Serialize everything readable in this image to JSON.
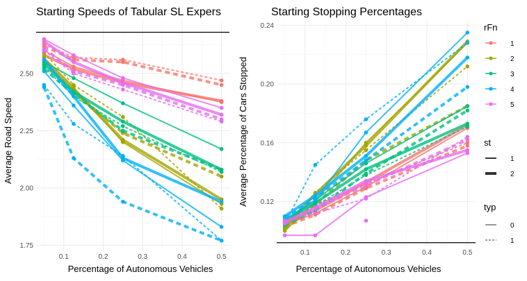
{
  "chart_data": [
    {
      "type": "line",
      "title": "Starting Speeds of Tabular SL Expers",
      "xlabel": "Percentage of Autonomous Vehicles",
      "ylabel": "Average Road Speed",
      "xlim": [
        0.03,
        0.52
      ],
      "ylim": [
        1.73,
        2.73
      ],
      "xticks": [
        0.1,
        0.2,
        0.3,
        0.4,
        0.5
      ],
      "xtick_labels": [
        "0.1",
        "0.2",
        "0.3",
        "0.4",
        "0.5"
      ],
      "yticks": [
        1.75,
        2.0,
        2.25,
        2.5
      ],
      "ytick_labels": [
        "1.75",
        "2.00",
        "2.25",
        "2.50"
      ],
      "hline": 2.68,
      "grid": true,
      "series": [
        {
          "rfn": "1",
          "st": "1",
          "typ": "0",
          "x": [
            0.05,
            0.125,
            0.25,
            0.5
          ],
          "y": [
            2.6,
            2.53,
            2.47,
            2.375
          ]
        },
        {
          "rfn": "1",
          "st": "2",
          "typ": "0",
          "x": [
            0.05,
            0.125,
            0.25,
            0.5
          ],
          "y": [
            2.58,
            2.52,
            2.46,
            2.38
          ]
        },
        {
          "rfn": "1",
          "st": "1",
          "typ": "1",
          "x": [
            0.05,
            0.125,
            0.25,
            0.5
          ],
          "y": [
            2.63,
            2.57,
            2.56,
            2.47
          ]
        },
        {
          "rfn": "1",
          "st": "2",
          "typ": "1",
          "x": [
            0.05,
            0.125,
            0.25,
            0.5
          ],
          "y": [
            2.62,
            2.56,
            2.55,
            2.45
          ]
        },
        {
          "rfn": "2",
          "st": "1",
          "typ": "0",
          "x": [
            0.05,
            0.125,
            0.25,
            0.5
          ],
          "y": [
            2.57,
            2.44,
            2.2,
            1.93
          ]
        },
        {
          "rfn": "2",
          "st": "2",
          "typ": "0",
          "x": [
            0.05,
            0.125,
            0.25,
            0.5
          ],
          "y": [
            2.56,
            2.43,
            2.21,
            1.95
          ]
        },
        {
          "rfn": "2",
          "st": "1",
          "typ": "1",
          "x": [
            0.05,
            0.125,
            0.25,
            0.5
          ],
          "y": [
            2.59,
            2.45,
            2.31,
            1.91
          ]
        },
        {
          "rfn": "2",
          "st": "2",
          "typ": "1",
          "x": [
            0.05,
            0.125,
            0.25,
            0.5
          ],
          "y": [
            2.55,
            2.42,
            2.24,
            2.05
          ]
        },
        {
          "rfn": "3",
          "st": "1",
          "typ": "0",
          "x": [
            0.05,
            0.125,
            0.25,
            0.5
          ],
          "y": [
            2.55,
            2.48,
            2.37,
            2.17
          ]
        },
        {
          "rfn": "3",
          "st": "2",
          "typ": "0",
          "x": [
            0.05,
            0.125,
            0.25,
            0.5
          ],
          "y": [
            2.54,
            2.42,
            2.29,
            2.08
          ]
        },
        {
          "rfn": "3",
          "st": "1",
          "typ": "1",
          "x": [
            0.05,
            0.125,
            0.25,
            0.5
          ],
          "y": [
            2.53,
            2.4,
            2.27,
            2.07
          ]
        },
        {
          "rfn": "3",
          "st": "2",
          "typ": "1",
          "x": [
            0.05,
            0.125,
            0.25,
            0.5
          ],
          "y": [
            2.52,
            2.41,
            2.25,
            2.08
          ]
        },
        {
          "rfn": "4",
          "st": "1",
          "typ": "0",
          "x": [
            0.05,
            0.125,
            0.25,
            0.5
          ],
          "y": [
            2.51,
            2.36,
            2.12,
            1.83
          ]
        },
        {
          "rfn": "4",
          "st": "2",
          "typ": "0",
          "x": [
            0.05,
            0.125,
            0.25,
            0.5
          ],
          "y": [
            2.56,
            2.4,
            2.13,
            1.94
          ]
        },
        {
          "rfn": "4",
          "st": "1",
          "typ": "1",
          "x": [
            0.05,
            0.125,
            0.25,
            0.5
          ],
          "y": [
            2.45,
            2.28,
            2.14,
            1.77
          ]
        },
        {
          "rfn": "4",
          "st": "2",
          "typ": "1",
          "x": [
            0.05,
            0.125,
            0.25,
            0.5
          ],
          "y": [
            2.44,
            2.13,
            1.94,
            1.77
          ]
        },
        {
          "rfn": "5",
          "st": "1",
          "typ": "0",
          "x": [
            0.05,
            0.125,
            0.25,
            0.5
          ],
          "y": [
            2.65,
            2.58,
            2.48,
            2.35
          ]
        },
        {
          "rfn": "5",
          "st": "2",
          "typ": "0",
          "x": [
            0.05,
            0.125,
            0.25,
            0.5
          ],
          "y": [
            2.64,
            2.55,
            2.46,
            2.32
          ]
        },
        {
          "rfn": "5",
          "st": "1",
          "typ": "1",
          "x": [
            0.05,
            0.125,
            0.25,
            0.5
          ],
          "y": [
            2.6,
            2.5,
            2.43,
            2.29
          ]
        },
        {
          "rfn": "5",
          "st": "2",
          "typ": "1",
          "x": [
            0.05,
            0.125,
            0.25,
            0.5
          ],
          "y": [
            2.61,
            2.51,
            2.45,
            2.3
          ]
        }
      ]
    },
    {
      "type": "line",
      "title": "Starting Stopping Percentages",
      "xlabel": "Percentage of Autonomous Vehicles",
      "ylabel": "Average Percentage of Cars Stopped",
      "xlim": [
        0.03,
        0.52
      ],
      "ylim": [
        0.09,
        0.243
      ],
      "xticks": [
        0.1,
        0.2,
        0.3,
        0.4,
        0.5
      ],
      "xtick_labels": [
        "0.1",
        "0.2",
        "0.3",
        "0.4",
        "0.5"
      ],
      "yticks": [
        0.12,
        0.16,
        0.2,
        0.24
      ],
      "ytick_labels": [
        "0.12",
        "0.16",
        "0.20",
        "0.24"
      ],
      "hline": 0.092,
      "grid": true,
      "series": [
        {
          "rfn": "1",
          "st": "1",
          "typ": "0",
          "x": [
            0.05,
            0.125,
            0.25,
            0.5
          ],
          "y": [
            0.104,
            0.112,
            0.13,
            0.17
          ]
        },
        {
          "rfn": "1",
          "st": "2",
          "typ": "0",
          "x": [
            0.05,
            0.125,
            0.25,
            0.5
          ],
          "y": [
            0.106,
            0.114,
            0.133,
            0.172
          ]
        },
        {
          "rfn": "1",
          "st": "1",
          "typ": "1",
          "x": [
            0.05,
            0.125,
            0.25,
            0.5
          ],
          "y": [
            0.101,
            0.118,
            0.132,
            0.16
          ]
        },
        {
          "rfn": "1",
          "st": "2",
          "typ": "1",
          "x": [
            0.05,
            0.125,
            0.25,
            0.5
          ],
          "y": [
            0.103,
            0.111,
            0.129,
            0.158
          ]
        },
        {
          "rfn": "2",
          "st": "1",
          "typ": "0",
          "x": [
            0.05,
            0.125,
            0.25,
            0.5
          ],
          "y": [
            0.1,
            0.12,
            0.16,
            0.228
          ]
        },
        {
          "rfn": "2",
          "st": "2",
          "typ": "0",
          "x": [
            0.05,
            0.125,
            0.25,
            0.5
          ],
          "y": [
            0.102,
            0.125,
            0.158,
            0.229
          ]
        },
        {
          "rfn": "2",
          "st": "1",
          "typ": "1",
          "x": [
            0.05,
            0.125,
            0.25,
            0.5
          ],
          "y": [
            0.103,
            0.126,
            0.155,
            0.212
          ]
        },
        {
          "rfn": "2",
          "st": "2",
          "typ": "1",
          "x": [
            0.05,
            0.125,
            0.25,
            0.5
          ],
          "y": [
            0.101,
            0.118,
            0.148,
            0.185
          ]
        },
        {
          "rfn": "3",
          "st": "1",
          "typ": "0",
          "x": [
            0.05,
            0.125,
            0.25,
            0.5
          ],
          "y": [
            0.106,
            0.121,
            0.146,
            0.185
          ]
        },
        {
          "rfn": "3",
          "st": "2",
          "typ": "0",
          "x": [
            0.05,
            0.125,
            0.25,
            0.5
          ],
          "y": [
            0.107,
            0.119,
            0.142,
            0.173
          ]
        },
        {
          "rfn": "3",
          "st": "1",
          "typ": "1",
          "x": [
            0.05,
            0.125,
            0.25,
            0.5
          ],
          "y": [
            0.106,
            0.117,
            0.138,
            0.171
          ]
        },
        {
          "rfn": "3",
          "st": "2",
          "typ": "1",
          "x": [
            0.05,
            0.125,
            0.25,
            0.5
          ],
          "y": [
            0.104,
            0.114,
            0.139,
            0.182
          ]
        },
        {
          "rfn": "4",
          "st": "1",
          "typ": "0",
          "x": [
            0.05,
            0.125,
            0.25,
            0.5
          ],
          "y": [
            0.108,
            0.121,
            0.167,
            0.235
          ]
        },
        {
          "rfn": "4",
          "st": "2",
          "typ": "0",
          "x": [
            0.05,
            0.125,
            0.25,
            0.5
          ],
          "y": [
            0.11,
            0.124,
            0.151,
            0.218
          ]
        },
        {
          "rfn": "4",
          "st": "1",
          "typ": "1",
          "x": [
            0.05,
            0.125,
            0.25,
            0.5
          ],
          "y": [
            0.105,
            0.145,
            0.176,
            0.228
          ]
        },
        {
          "rfn": "4",
          "st": "2",
          "typ": "1",
          "x": [
            0.05,
            0.125,
            0.25,
            0.5
          ],
          "y": [
            0.109,
            0.122,
            0.148,
            0.198
          ]
        },
        {
          "rfn": "5",
          "st": "1",
          "typ": "0",
          "x": [
            0.05,
            0.125,
            0.25,
            0.5
          ],
          "y": [
            0.097,
            0.097,
            0.123,
            0.153
          ]
        },
        {
          "rfn": "5",
          "st": "2",
          "typ": "0",
          "x": [
            0.05,
            0.125,
            0.25,
            0.5
          ],
          "y": [
            0.106,
            0.116,
            0.134,
            0.155
          ]
        },
        {
          "rfn": "5",
          "st": "1",
          "typ": "1",
          "x": [
            0.05,
            0.125,
            0.25,
            0.5
          ],
          "y": [
            0.107,
            0.112,
            0.122,
            0.164
          ]
        },
        {
          "rfn": "5",
          "st": "2",
          "typ": "1",
          "x": [
            0.05,
            0.125,
            0.25,
            0.5
          ],
          "y": [
            0.105,
            0.115,
            0.131,
            0.162
          ]
        }
      ],
      "extra_points": [
        {
          "rfn": "5",
          "x": 0.25,
          "y": 0.107
        }
      ]
    }
  ],
  "legend": {
    "rfn": {
      "title": "rFn",
      "items": [
        {
          "label": "1",
          "color": "#F8766D"
        },
        {
          "label": "2",
          "color": "#A3A500"
        },
        {
          "label": "3",
          "color": "#00BF7D"
        },
        {
          "label": "4",
          "color": "#00B0F6"
        },
        {
          "label": "5",
          "color": "#E76BF3"
        }
      ]
    },
    "st": {
      "title": "st",
      "items": [
        {
          "label": "1"
        },
        {
          "label": "2"
        }
      ]
    },
    "typ": {
      "title": "typ",
      "items": [
        {
          "label": "0"
        },
        {
          "label": "1"
        }
      ]
    }
  }
}
